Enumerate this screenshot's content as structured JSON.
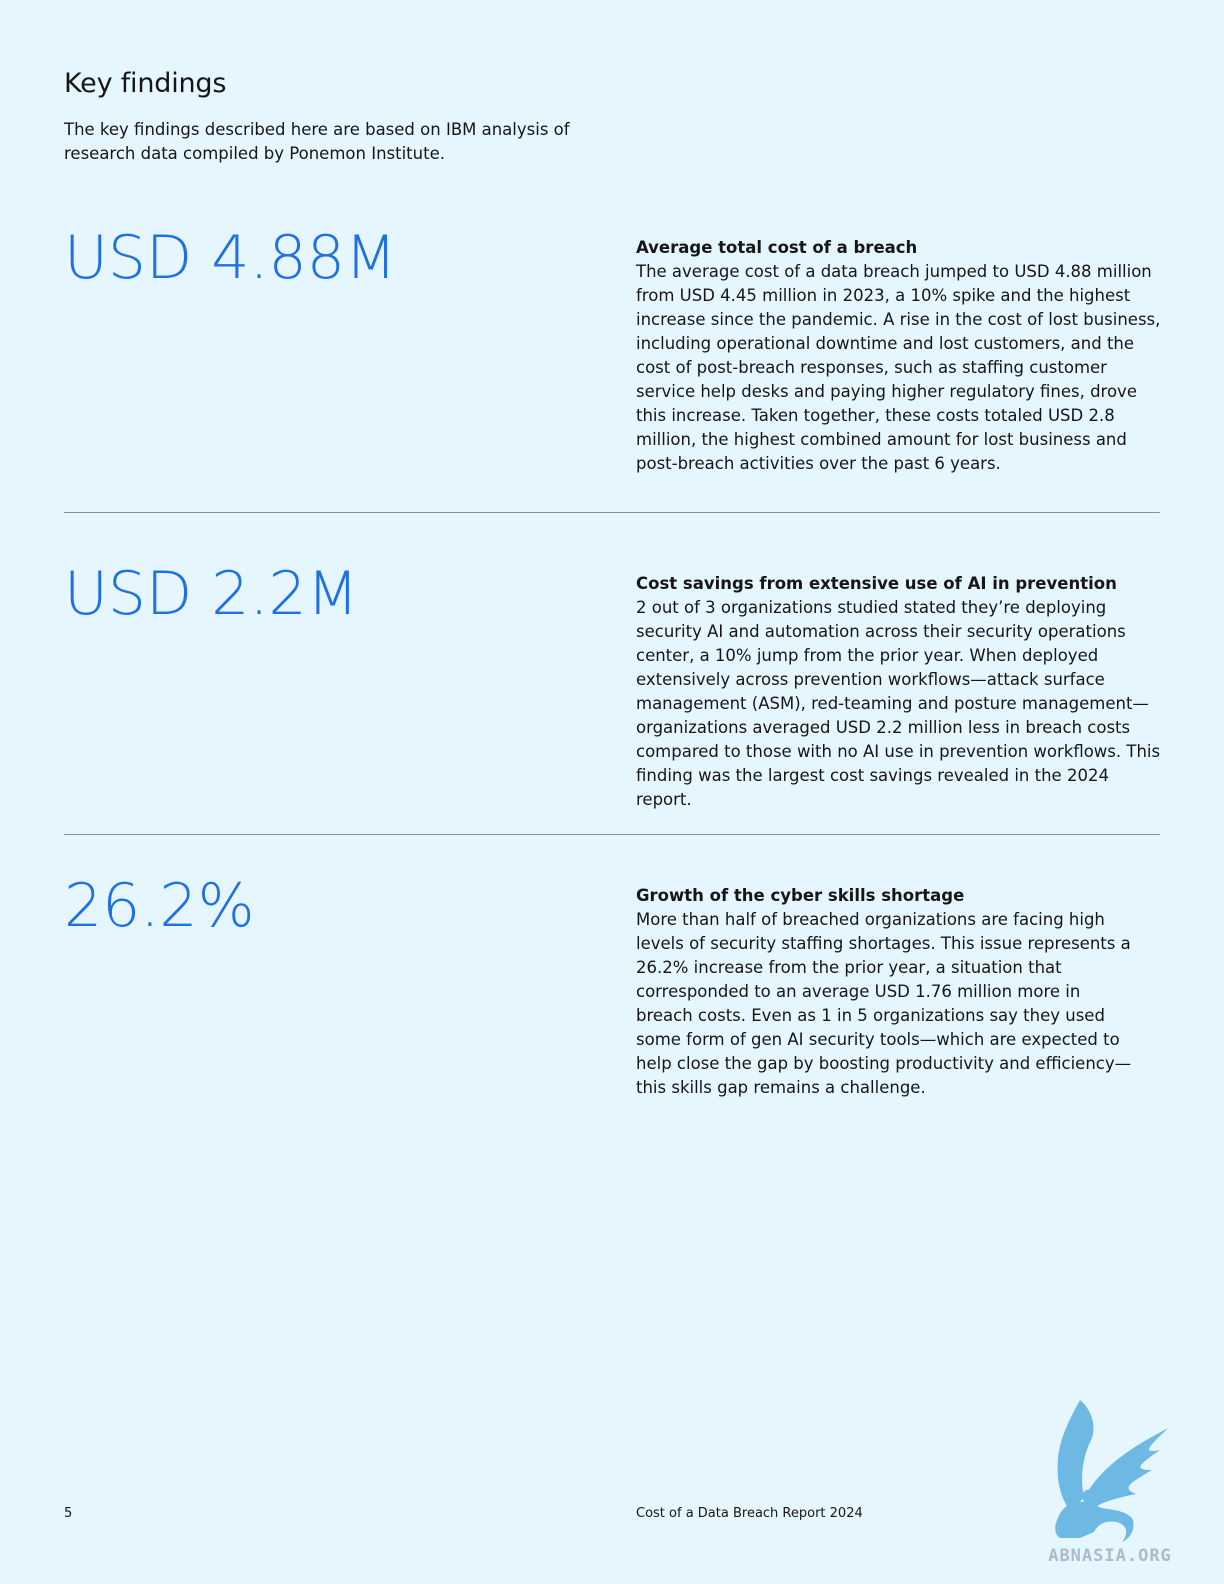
{
  "page": {
    "title": "Key findings",
    "intro": "The key findings described here are based on IBM analysis of research data compiled by Ponemon Institute."
  },
  "findings": [
    {
      "stat": "USD 4.88M",
      "heading": "Average total cost of a breach",
      "body": "The average cost of a data breach jumped to USD 4.88 million from USD 4.45 million in 2023, a 10% spike and the highest increase since the pandemic. A rise in the cost of lost business, including operational downtime and lost customers, and the cost of post-breach responses, such as staffing customer service help desks and paying higher regulatory fines, drove this increase. Taken together, these costs totaled USD 2.8 million, the highest combined amount for lost business and post-breach activities over the past 6 years."
    },
    {
      "stat": "USD 2.2M",
      "heading": "Cost savings from extensive use of AI in prevention",
      "body": "2 out of 3 organizations studied stated they’re deploying security AI and automation across their security operations center, a 10% jump from the prior year. When deployed extensively across prevention workflows—attack surface management (ASM), red-teaming and posture management—organizations averaged USD 2.2 million less in breach costs compared to those with no AI use in prevention workflows. This finding was the largest cost savings revealed in the 2024 report."
    },
    {
      "stat": "26.2%",
      "heading": "Growth of the cyber skills shortage",
      "body": "More than half of breached organizations are facing high levels of security staffing shortages. This issue represents a 26.2% increase from the prior year, a situation that corresponded to an average USD 1.76 million more in breach costs. Even as 1 in 5 organizations say they used some form of gen AI security tools—which are expected to help close the gap by boosting productivity and efficiency—this skills gap remains a challenge."
    }
  ],
  "footer": {
    "page_number": "5",
    "report_title": "Cost of a Data Breach Report 2024"
  },
  "watermark": {
    "text": "ABNASIA.ORG",
    "icon": "griffin-logo-icon",
    "color": "#5aaee0"
  },
  "colors": {
    "background": "#e5f6ff",
    "accent": "#1f6fe5",
    "divider": "#8d8d8d"
  }
}
